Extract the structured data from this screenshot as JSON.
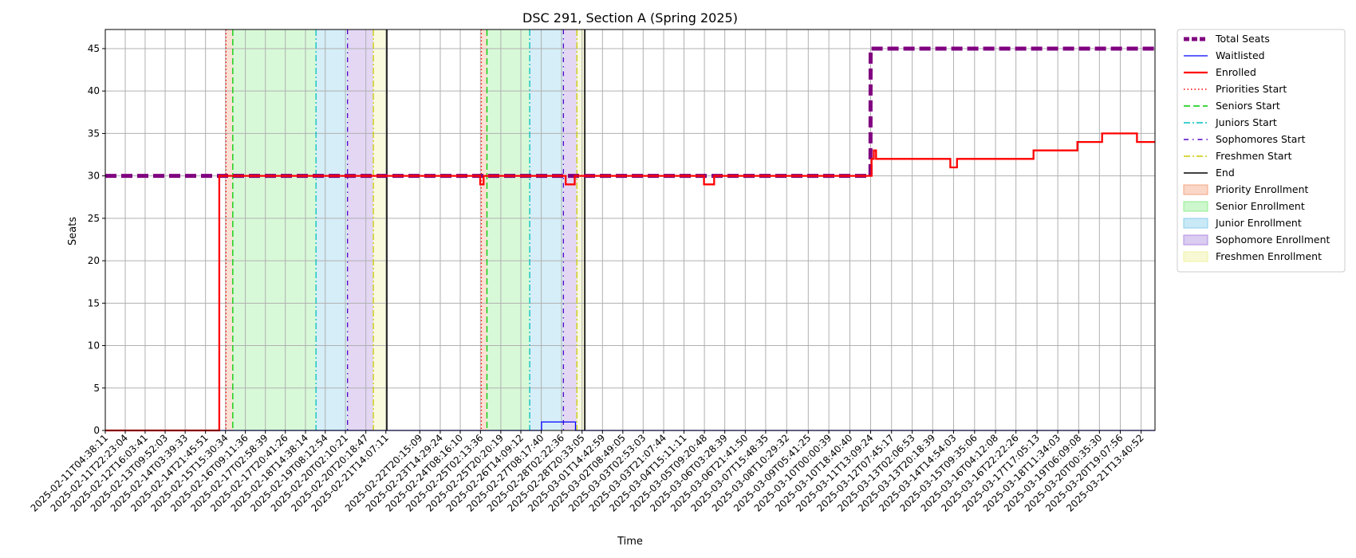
{
  "chart_data": {
    "type": "line",
    "title": "DSC 291, Section A (Spring 2025)",
    "xlabel": "Time",
    "ylabel": "Seats",
    "ylim": [
      0,
      47.25
    ],
    "yticks": [
      0,
      5,
      10,
      15,
      20,
      25,
      30,
      35,
      40,
      45
    ],
    "xlim": [
      "2025-02-11T04:38:11",
      "2025-03-22T02:00:00"
    ],
    "xticks": [
      "2025-02-11T04:38:11",
      "2025-02-11T22:23:04",
      "2025-02-12T16:03:41",
      "2025-02-13T09:52:03",
      "2025-02-14T03:39:33",
      "2025-02-14T21:45:51",
      "2025-02-15T15:30:34",
      "2025-02-16T09:11:36",
      "2025-02-17T02:58:39",
      "2025-02-17T20:41:26",
      "2025-02-18T14:38:14",
      "2025-02-19T08:12:54",
      "2025-02-20T02:10:21",
      "2025-02-20T20:18:47",
      "2025-02-21T14:07:11",
      "2025-02-22T20:15:09",
      "2025-02-23T14:29:24",
      "2025-02-24T08:16:10",
      "2025-02-25T02:13:36",
      "2025-02-25T20:20:19",
      "2025-02-26T14:09:12",
      "2025-02-27T08:17:40",
      "2025-02-28T02:22:36",
      "2025-02-28T20:33:05",
      "2025-03-01T14:42:59",
      "2025-03-02T08:49:05",
      "2025-03-03T02:53:03",
      "2025-03-03T21:07:44",
      "2025-03-04T15:11:11",
      "2025-03-05T09:20:48",
      "2025-03-06T03:28:39",
      "2025-03-06T21:41:50",
      "2025-03-07T15:48:35",
      "2025-03-08T10:29:32",
      "2025-03-09T05:41:25",
      "2025-03-10T00:00:39",
      "2025-03-10T18:40:40",
      "2025-03-11T13:09:24",
      "2025-03-12T07:45:17",
      "2025-03-13T02:06:53",
      "2025-03-13T20:18:39",
      "2025-03-14T14:54:03",
      "2025-03-15T09:35:06",
      "2025-03-16T04:12:08",
      "2025-03-16T22:22:26",
      "2025-03-17T17:05:13",
      "2025-03-18T11:34:03",
      "2025-03-19T06:09:08",
      "2025-03-20T00:35:30",
      "2025-03-20T19:07:56",
      "2025-03-21T13:40:52"
    ],
    "grid": true,
    "legend_position": "outside-right",
    "series": [
      {
        "name": "Total Seats",
        "color": "#800080",
        "style": "dashed",
        "x": [
          "2025-02-11T04:38:11",
          "2025-03-11T13:00:00",
          "2025-03-11T13:09:24",
          "2025-03-22T02:00:00"
        ],
        "values": [
          30,
          30,
          45,
          45
        ]
      },
      {
        "name": "Waitlisted",
        "color": "#0000ff",
        "style": "solid",
        "x": [
          "2025-02-11T04:38:11",
          "2025-02-27T08:30:00",
          "2025-02-27T08:30:00",
          "2025-02-28T14:45:00",
          "2025-02-28T14:45:00",
          "2025-03-22T02:00:00"
        ],
        "values": [
          0,
          0,
          1,
          1,
          0,
          0
        ]
      },
      {
        "name": "Enrolled",
        "color": "#ff0000",
        "style": "solid",
        "x": [
          "2025-02-11T04:38:11",
          "2025-02-15T10:00:00",
          "2025-02-15T10:00:00",
          "2025-02-25T02:00:00",
          "2025-02-25T02:00:00",
          "2025-02-25T05:00:00",
          "2025-02-25T05:00:00",
          "2025-02-28T06:00:00",
          "2025-02-28T06:00:00",
          "2025-02-28T14:00:00",
          "2025-02-28T14:00:00",
          "2025-03-05T09:00:00",
          "2025-03-05T09:00:00",
          "2025-03-05T18:00:00",
          "2025-03-05T18:00:00",
          "2025-03-11T14:00:00",
          "2025-03-11T14:00:00",
          "2025-03-11T16:00:00",
          "2025-03-11T16:00:00",
          "2025-03-11T18:00:00",
          "2025-03-11T18:00:00",
          "2025-03-14T12:00:00",
          "2025-03-14T12:00:00",
          "2025-03-14T18:00:00",
          "2025-03-14T18:00:00",
          "2025-03-16T22:00:00",
          "2025-03-16T22:00:00",
          "2025-03-17T14:00:00",
          "2025-03-17T14:00:00",
          "2025-03-18T08:00:00",
          "2025-03-18T08:00:00",
          "2025-03-19T05:00:00",
          "2025-03-19T05:00:00",
          "2025-03-20T03:00:00",
          "2025-03-20T03:00:00",
          "2025-03-21T10:00:00",
          "2025-03-21T10:00:00",
          "2025-03-22T02:00:00"
        ],
        "values": [
          0,
          0,
          30,
          30,
          29,
          29,
          30,
          30,
          29,
          29,
          30,
          30,
          29,
          29,
          30,
          30,
          32,
          32,
          33,
          33,
          32,
          32,
          31,
          31,
          32,
          32,
          32,
          32,
          33,
          33,
          33,
          33,
          34,
          34,
          35,
          35,
          34,
          34
        ]
      }
    ],
    "markers": [
      {
        "name": "Priorities Start",
        "color": "#ff0000",
        "style": "dotted",
        "x": [
          "2025-02-15T16:00:00",
          "2025-02-25T03:00:00"
        ]
      },
      {
        "name": "Seniors Start",
        "color": "#00cc00",
        "style": "dashed",
        "x": [
          "2025-02-15T22:00:00",
          "2025-02-25T08:00:00"
        ]
      },
      {
        "name": "Juniors Start",
        "color": "#00bfbf",
        "style": "dashdot",
        "x": [
          "2025-02-19T00:00:00",
          "2025-02-26T22:00:00"
        ]
      },
      {
        "name": "Sophomores Start",
        "color": "#5500cc",
        "style": "loosely-dashdot",
        "x": [
          "2025-02-20T04:00:00",
          "2025-02-28T04:00:00"
        ]
      },
      {
        "name": "Freshmen Start",
        "color": "#cccc00",
        "style": "dashdot",
        "x": [
          "2025-02-21T03:00:00",
          "2025-02-28T16:00:00"
        ]
      },
      {
        "name": "End",
        "color": "#000000",
        "style": "solid",
        "x": [
          "2025-02-21T15:00:00",
          "2025-02-28T23:00:00"
        ]
      }
    ],
    "bands": [
      {
        "name": "Priority Enrollment",
        "color": "#f4a582",
        "ranges": [
          [
            "2025-02-15T16:00:00",
            "2025-02-15T22:00:00"
          ],
          [
            "2025-02-25T03:00:00",
            "2025-02-25T08:00:00"
          ]
        ]
      },
      {
        "name": "Senior Enrollment",
        "color": "#90ee90",
        "ranges": [
          [
            "2025-02-15T22:00:00",
            "2025-02-19T00:00:00"
          ],
          [
            "2025-02-25T08:00:00",
            "2025-02-26T22:00:00"
          ]
        ]
      },
      {
        "name": "Junior Enrollment",
        "color": "#87ceeb",
        "ranges": [
          [
            "2025-02-19T00:00:00",
            "2025-02-20T04:00:00"
          ],
          [
            "2025-02-26T22:00:00",
            "2025-02-28T04:00:00"
          ]
        ]
      },
      {
        "name": "Sophomore Enrollment",
        "color": "#b08de0",
        "ranges": [
          [
            "2025-02-20T04:00:00",
            "2025-02-21T03:00:00"
          ],
          [
            "2025-02-28T04:00:00",
            "2025-02-28T16:00:00"
          ]
        ]
      },
      {
        "name": "Freshmen Enrollment",
        "color": "#f0f0a0",
        "ranges": [
          [
            "2025-02-21T03:00:00",
            "2025-02-21T15:00:00"
          ],
          [
            "2025-02-28T16:00:00",
            "2025-02-28T23:00:00"
          ]
        ]
      }
    ]
  }
}
